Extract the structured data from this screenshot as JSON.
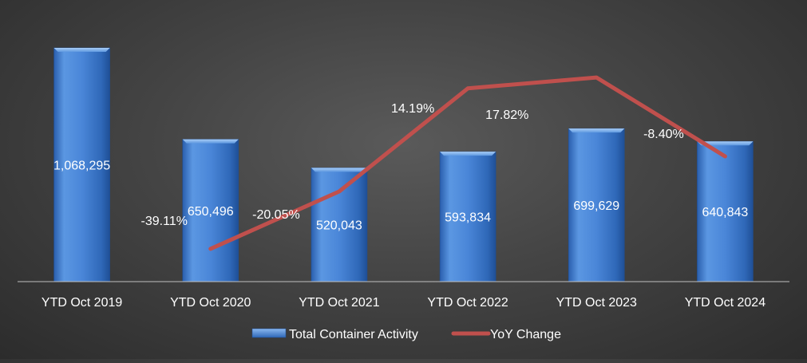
{
  "chart_data": {
    "type": "bar",
    "categories": [
      "YTD Oct 2019",
      "YTD Oct 2020",
      "YTD Oct 2021",
      "YTD Oct 2022",
      "YTD Oct 2023",
      "YTD Oct 2024"
    ],
    "series": [
      {
        "name": "Total Container Activity",
        "type": "bar",
        "axis": "primary",
        "values": [
          1068295,
          650496,
          520043,
          593834,
          699629,
          640843
        ],
        "labels": [
          "1,068,295",
          "650,496",
          "520,043",
          "593,834",
          "699,629",
          "640,843"
        ]
      },
      {
        "name": "YoY Change",
        "type": "line",
        "axis": "secondary",
        "values": [
          null,
          -39.11,
          -20.05,
          14.19,
          17.82,
          -8.4
        ],
        "labels": [
          "",
          "-39.11%",
          "-20.05%",
          "14.19%",
          "17.82%",
          "-8.40%"
        ]
      }
    ],
    "ylim": [
      0,
      1068295
    ],
    "y2lim": [
      -50,
      25
    ],
    "legend_position": "bottom",
    "grid": false,
    "colors": {
      "bar": "#4a86d8",
      "bar_light": "#8ab8f0",
      "bar_dark": "#1f4f96",
      "line": "#c0504d",
      "text": "#ffffff",
      "axis": "#bfbfbf"
    }
  }
}
